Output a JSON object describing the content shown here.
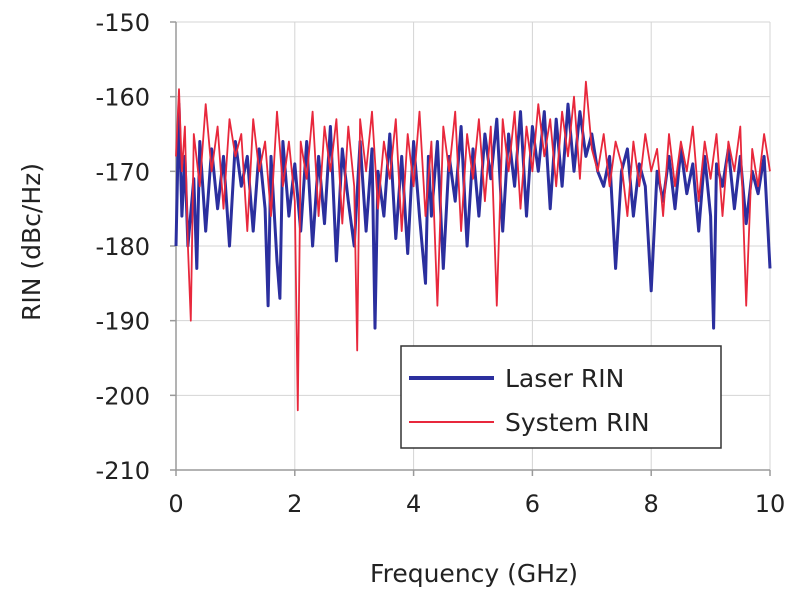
{
  "chart_data": {
    "type": "line",
    "xlabel": "Frequency (GHz)",
    "ylabel": "RIN (dBc/Hz)",
    "xlim": [
      0,
      10
    ],
    "ylim": [
      -210,
      -150
    ],
    "xticks": [
      0,
      2,
      4,
      6,
      8,
      10
    ],
    "yticks": [
      -150,
      -160,
      -170,
      -180,
      -190,
      -200,
      -210
    ],
    "xtick_labels": [
      "0",
      "2",
      "4",
      "6",
      "8",
      "10"
    ],
    "ytick_labels": [
      "-150",
      "-160",
      "-170",
      "-180",
      "-190",
      "-200",
      "-210"
    ],
    "grid": true,
    "legend_position": "bottom-right",
    "series": [
      {
        "name": "Laser RIN",
        "color": "#2b2f9e",
        "x": [
          0.0,
          0.05,
          0.1,
          0.15,
          0.2,
          0.3,
          0.35,
          0.4,
          0.5,
          0.6,
          0.7,
          0.8,
          0.9,
          1.0,
          1.1,
          1.2,
          1.3,
          1.4,
          1.5,
          1.55,
          1.6,
          1.7,
          1.75,
          1.8,
          1.9,
          2.0,
          2.1,
          2.2,
          2.3,
          2.4,
          2.5,
          2.6,
          2.7,
          2.8,
          2.9,
          3.0,
          3.1,
          3.2,
          3.3,
          3.35,
          3.4,
          3.5,
          3.6,
          3.7,
          3.8,
          3.9,
          4.0,
          4.1,
          4.2,
          4.25,
          4.3,
          4.4,
          4.5,
          4.6,
          4.7,
          4.8,
          4.9,
          5.0,
          5.1,
          5.2,
          5.3,
          5.4,
          5.5,
          5.6,
          5.7,
          5.8,
          5.9,
          6.0,
          6.1,
          6.2,
          6.3,
          6.4,
          6.5,
          6.6,
          6.7,
          6.8,
          6.9,
          7.0,
          7.1,
          7.2,
          7.3,
          7.4,
          7.5,
          7.6,
          7.7,
          7.8,
          7.9,
          8.0,
          8.1,
          8.2,
          8.3,
          8.4,
          8.5,
          8.6,
          8.7,
          8.8,
          8.9,
          9.0,
          9.05,
          9.1,
          9.2,
          9.3,
          9.4,
          9.5,
          9.6,
          9.7,
          9.8,
          9.9,
          10.0
        ],
        "values": [
          -180,
          -161,
          -176,
          -168,
          -180,
          -171,
          -183,
          -166,
          -178,
          -167,
          -175,
          -168,
          -180,
          -166,
          -172,
          -168,
          -178,
          -167,
          -175,
          -188,
          -168,
          -182,
          -187,
          -166,
          -176,
          -169,
          -178,
          -166,
          -180,
          -168,
          -177,
          -164,
          -182,
          -167,
          -174,
          -180,
          -166,
          -178,
          -167,
          -191,
          -170,
          -176,
          -165,
          -179,
          -168,
          -181,
          -166,
          -176,
          -185,
          -168,
          -176,
          -166,
          -183,
          -168,
          -174,
          -164,
          -180,
          -167,
          -176,
          -165,
          -171,
          -163,
          -178,
          -165,
          -172,
          -162,
          -176,
          -164,
          -170,
          -162,
          -175,
          -163,
          -172,
          -161,
          -170,
          -162,
          -168,
          -165,
          -170,
          -172,
          -168,
          -183,
          -170,
          -167,
          -176,
          -169,
          -172,
          -186,
          -170,
          -174,
          -168,
          -175,
          -167,
          -173,
          -169,
          -178,
          -168,
          -176,
          -191,
          -169,
          -172,
          -167,
          -175,
          -168,
          -177,
          -170,
          -173,
          -168,
          -183
        ]
      },
      {
        "name": "System RIN",
        "color": "#e8283c",
        "x": [
          0.0,
          0.05,
          0.1,
          0.15,
          0.2,
          0.25,
          0.3,
          0.4,
          0.5,
          0.6,
          0.7,
          0.8,
          0.9,
          1.0,
          1.1,
          1.2,
          1.3,
          1.4,
          1.5,
          1.6,
          1.7,
          1.8,
          1.9,
          2.0,
          2.05,
          2.1,
          2.2,
          2.3,
          2.4,
          2.5,
          2.6,
          2.7,
          2.8,
          2.9,
          3.0,
          3.05,
          3.1,
          3.2,
          3.3,
          3.4,
          3.5,
          3.6,
          3.7,
          3.8,
          3.9,
          4.0,
          4.1,
          4.2,
          4.3,
          4.4,
          4.5,
          4.6,
          4.7,
          4.8,
          4.9,
          5.0,
          5.1,
          5.2,
          5.3,
          5.4,
          5.5,
          5.6,
          5.7,
          5.8,
          5.9,
          6.0,
          6.1,
          6.2,
          6.3,
          6.4,
          6.5,
          6.6,
          6.7,
          6.8,
          6.9,
          7.0,
          7.1,
          7.2,
          7.3,
          7.4,
          7.5,
          7.6,
          7.7,
          7.8,
          7.9,
          8.0,
          8.1,
          8.2,
          8.3,
          8.4,
          8.5,
          8.6,
          8.7,
          8.8,
          8.9,
          9.0,
          9.1,
          9.2,
          9.3,
          9.4,
          9.5,
          9.6,
          9.7,
          9.8,
          9.9,
          10.0
        ],
        "values": [
          -168,
          -159,
          -170,
          -164,
          -180,
          -190,
          -165,
          -172,
          -161,
          -170,
          -164,
          -175,
          -163,
          -168,
          -165,
          -178,
          -163,
          -170,
          -166,
          -176,
          -162,
          -172,
          -166,
          -174,
          -202,
          -166,
          -171,
          -162,
          -176,
          -164,
          -170,
          -163,
          -177,
          -164,
          -172,
          -194,
          -163,
          -170,
          -162,
          -175,
          -166,
          -171,
          -163,
          -178,
          -165,
          -172,
          -162,
          -176,
          -166,
          -188,
          -164,
          -170,
          -162,
          -178,
          -165,
          -171,
          -163,
          -174,
          -164,
          -188,
          -163,
          -170,
          -162,
          -175,
          -164,
          -170,
          -161,
          -168,
          -163,
          -172,
          -162,
          -168,
          -160,
          -171,
          -158,
          -167,
          -170,
          -165,
          -172,
          -166,
          -169,
          -176,
          -166,
          -172,
          -165,
          -170,
          -167,
          -176,
          -165,
          -172,
          -166,
          -170,
          -164,
          -174,
          -166,
          -171,
          -165,
          -176,
          -166,
          -170,
          -164,
          -188,
          -167,
          -172,
          -165,
          -170
        ]
      }
    ]
  }
}
